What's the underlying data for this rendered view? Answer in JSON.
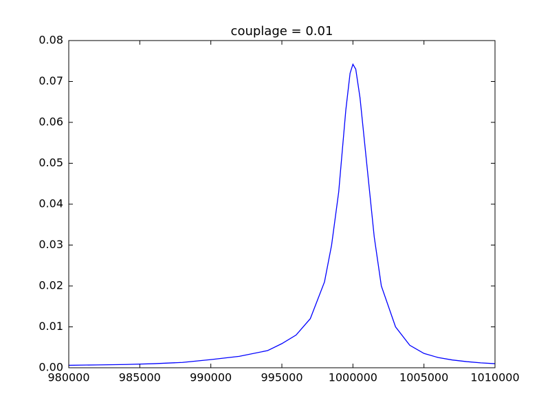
{
  "chart_data": {
    "type": "line",
    "title": "couplage = 0.01",
    "x": [
      980000,
      982000,
      984000,
      986000,
      988000,
      990000,
      992000,
      994000,
      995000,
      996000,
      997000,
      998000,
      998500,
      999000,
      999500,
      999800,
      1000000,
      1000200,
      1000500,
      1001000,
      1001500,
      1002000,
      1003000,
      1004000,
      1005000,
      1006000,
      1007000,
      1008000,
      1009000,
      1010000
    ],
    "series": [
      {
        "color": "#0000ff",
        "values": [
          0.0006,
          0.0007,
          0.0008,
          0.001,
          0.0013,
          0.002,
          0.0028,
          0.0042,
          0.0059,
          0.008,
          0.012,
          0.021,
          0.03,
          0.043,
          0.063,
          0.072,
          0.0742,
          0.073,
          0.066,
          0.049,
          0.032,
          0.02,
          0.01,
          0.0055,
          0.0035,
          0.0025,
          0.0019,
          0.0015,
          0.0012,
          0.001
        ]
      }
    ],
    "xlim": [
      980000,
      1010000
    ],
    "xticks": [
      980000,
      985000,
      990000,
      995000,
      1000000,
      1005000,
      1010000
    ],
    "ylim": [
      0,
      0.08
    ],
    "yticks": [
      {
        "value": 0,
        "label": "0.00"
      },
      0.01,
      0.02,
      0.03,
      0.04,
      0.05,
      0.06,
      0.07,
      0.08
    ]
  }
}
